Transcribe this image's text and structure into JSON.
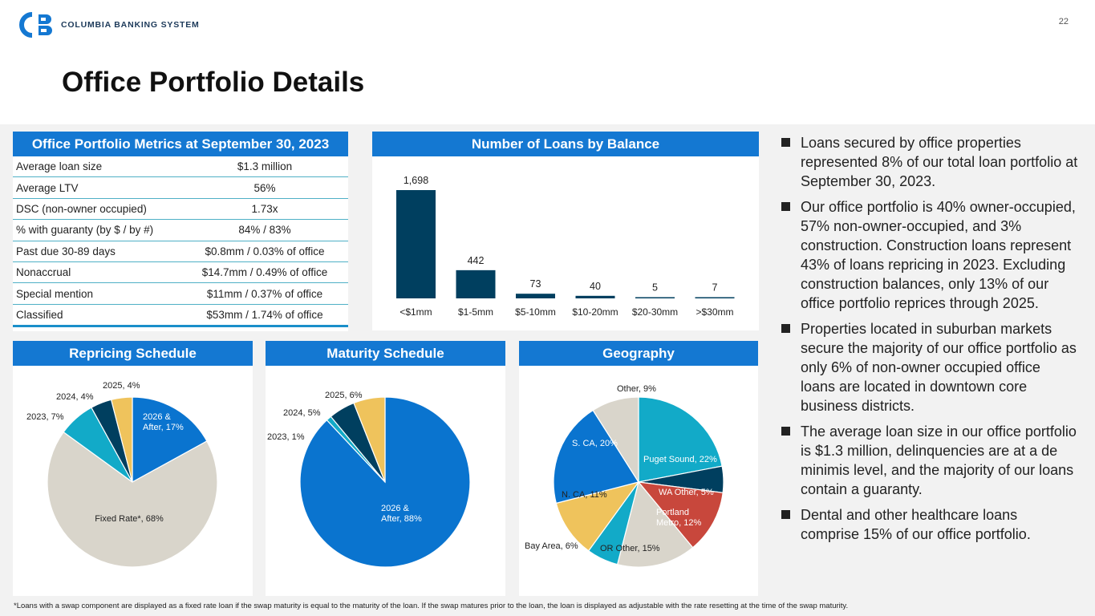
{
  "header": {
    "company": "COLUMBIA BANKING SYSTEM",
    "page_number": "22",
    "title": "Office Portfolio Details"
  },
  "metrics": {
    "title": "Office Portfolio Metrics at September 30, 2023",
    "rows": [
      {
        "label": "Average loan size",
        "value": "$1.3 million"
      },
      {
        "label": "Average LTV",
        "value": "56%"
      },
      {
        "label": "DSC (non-owner occupied)",
        "value": "1.73x"
      },
      {
        "label": "% with guaranty (by $ / by #)",
        "value": "84% / 83%"
      },
      {
        "label": "Past due 30-89 days",
        "value": "$0.8mm / 0.03% of office"
      },
      {
        "label": "Nonaccrual",
        "value": "$14.7mm / 0.49% of office"
      },
      {
        "label": "Special mention",
        "value": "$11mm / 0.37% of office"
      },
      {
        "label": "Classified",
        "value": "$53mm / 1.74% of office"
      }
    ]
  },
  "panels": {
    "loans_by_balance": "Number of Loans by Balance",
    "repricing": "Repricing Schedule",
    "maturity": "Maturity Schedule",
    "geography": "Geography"
  },
  "colors": {
    "brand_blue": "#1478d2",
    "navy": "#003f5f",
    "teal": "#12aac8",
    "gold": "#efc35c",
    "beige": "#d9d5cb",
    "red": "#c8473c",
    "bright_blue": "#0a74cf"
  },
  "chart_data": [
    {
      "type": "bar",
      "title": "Number of Loans by Balance",
      "categories": [
        "<$1mm",
        "$1-5mm",
        "$5-10mm",
        "$10-20mm",
        "$20-30mm",
        ">$30mm"
      ],
      "values": [
        1698,
        442,
        73,
        40,
        5,
        7
      ],
      "value_labels": [
        "1,698",
        "442",
        "73",
        "40",
        "5",
        "7"
      ],
      "ylim": [
        0,
        1698
      ]
    },
    {
      "type": "pie",
      "title": "Repricing Schedule",
      "slices": [
        {
          "label": "2026 & After, 17%",
          "value": 17,
          "color": "#0a74cf"
        },
        {
          "label": "Fixed Rate*, 68%",
          "value": 68,
          "color": "#d9d5cb"
        },
        {
          "label": "2023, 7%",
          "value": 7,
          "color": "#12aac8"
        },
        {
          "label": "2024, 4%",
          "value": 4,
          "color": "#003f5f"
        },
        {
          "label": "2025, 4%",
          "value": 4,
          "color": "#efc35c"
        }
      ]
    },
    {
      "type": "pie",
      "title": "Maturity Schedule",
      "slices": [
        {
          "label": "2026 & After, 88%",
          "value": 88,
          "color": "#0a74cf"
        },
        {
          "label": "2023, 1%",
          "value": 1,
          "color": "#12aac8"
        },
        {
          "label": "2024, 5%",
          "value": 5,
          "color": "#003f5f"
        },
        {
          "label": "2025, 6%",
          "value": 6,
          "color": "#efc35c"
        }
      ]
    },
    {
      "type": "pie",
      "title": "Geography",
      "slices": [
        {
          "label": "Puget Sound, 22%",
          "value": 22,
          "color": "#12aac8"
        },
        {
          "label": "WA Other, 5%",
          "value": 5,
          "color": "#003f5f"
        },
        {
          "label": "Portland Metro, 12%",
          "value": 12,
          "color": "#c8473c"
        },
        {
          "label": "OR Other, 15%",
          "value": 15,
          "color": "#d9d5cb"
        },
        {
          "label": "Bay Area, 6%",
          "value": 6,
          "color": "#12aac8"
        },
        {
          "label": "N. CA, 11%",
          "value": 11,
          "color": "#efc35c"
        },
        {
          "label": "S. CA, 20%",
          "value": 20,
          "color": "#0a74cf"
        },
        {
          "label": "Other, 9%",
          "value": 9,
          "color": "#d9d5cb"
        }
      ]
    }
  ],
  "bullets": [
    "Loans secured by office properties represented 8% of our total loan portfolio at September 30, 2023.",
    "Our office portfolio is 40% owner-occupied, 57% non-owner-occupied, and 3% construction. Construction loans represent 43% of loans repricing in 2023. Excluding construction balances, only 13% of our office portfolio reprices through 2025.",
    "Properties located in suburban markets secure the majority of our office portfolio as only 6% of non-owner occupied office loans are located in downtown core business districts.",
    "The average loan size in our office portfolio is $1.3 million, delinquencies are at a de minimis level, and the majority of our loans contain a guaranty.",
    "Dental and other healthcare loans comprise 15% of our office portfolio."
  ],
  "footnote": "*Loans with a swap component are displayed as a fixed rate loan if the swap maturity is equal to the maturity of the loan. If the swap matures prior to the loan, the loan is displayed as adjustable with the rate resetting at the time of the swap maturity."
}
